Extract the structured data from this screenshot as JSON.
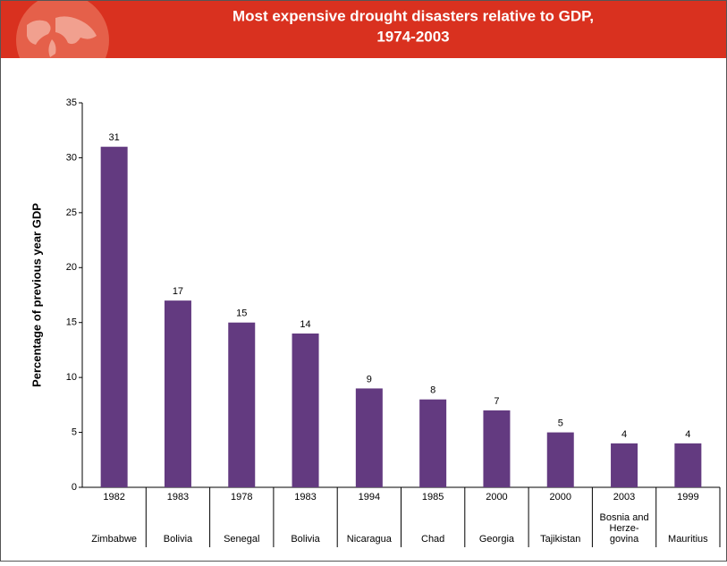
{
  "chart_data": {
    "type": "bar",
    "title": "Most expensive drought disasters relative to GDP,",
    "subtitle": "1974-2003",
    "y_label": "Percentage of previous year GDP",
    "categories": [
      "1982",
      "1983",
      "1978",
      "1983",
      "1994",
      "1985",
      "2000",
      "2000",
      "2003",
      "1999"
    ],
    "countries": [
      [
        "Zimbabwe"
      ],
      [
        "Bolivia"
      ],
      [
        "Senegal"
      ],
      [
        "Bolivia"
      ],
      [
        "Nicaragua"
      ],
      [
        "Chad"
      ],
      [
        "Georgia"
      ],
      [
        "Tajikistan"
      ],
      [
        "Bosnia and",
        "Herze-",
        "govina"
      ],
      [
        "Mauritius"
      ]
    ],
    "values": [
      31,
      17,
      15,
      14,
      9,
      8,
      7,
      5,
      4,
      4
    ],
    "color": "#633a80",
    "ylim": [
      0,
      35
    ],
    "yticks": [
      0,
      5,
      10,
      15,
      20,
      25,
      30,
      35
    ],
    "grid": false
  }
}
